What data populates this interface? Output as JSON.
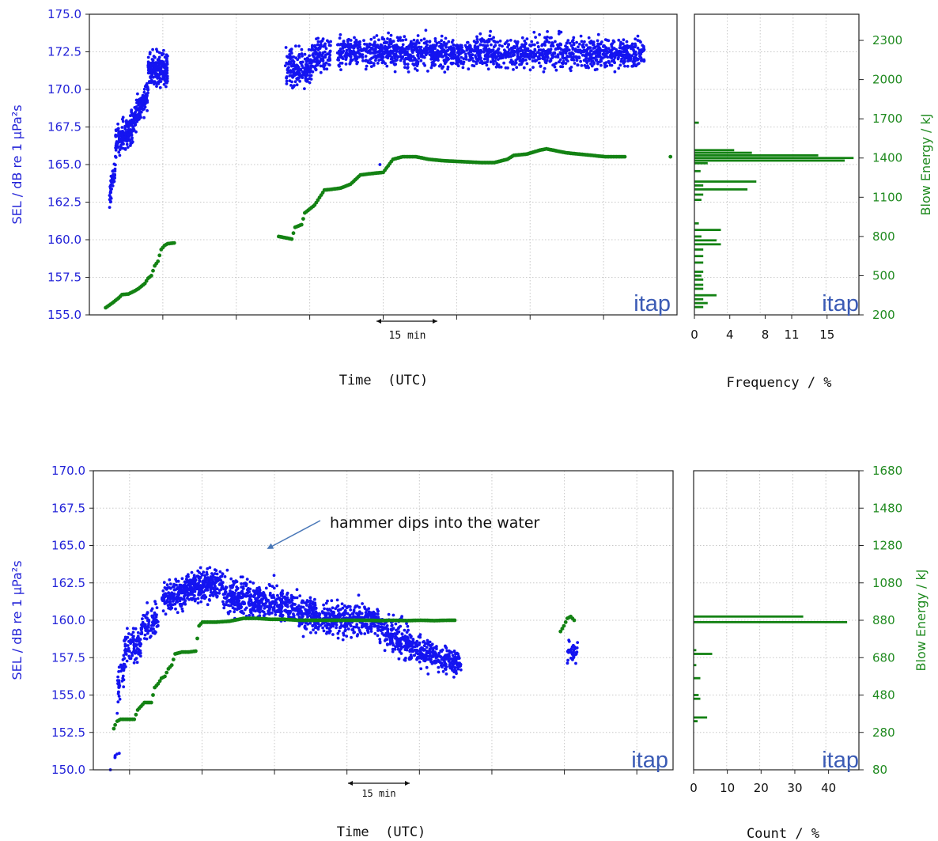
{
  "colors": {
    "sel": "#1414f0",
    "energy": "#138213",
    "axis_left": "#2323d8",
    "axis_right": "#1f8a1f",
    "grid": "#c8c8c8",
    "brand": "#3b5bb5",
    "arrow": "#4a78b8"
  },
  "chart_data": [
    {
      "type": "scatter",
      "panel": "top-timeseries",
      "ylabel": "SEL / dB re 1 µPa²s",
      "ylabel_right": "Blow Energy / kJ",
      "xlabel": "Time  (UTC)",
      "ylim": [
        155.0,
        175.0
      ],
      "yticks": [
        "155.0",
        "157.5",
        "160.0",
        "162.5",
        "165.0",
        "167.5",
        "170.0",
        "172.5",
        "175.0"
      ],
      "ylim_right": [
        200,
        2500
      ],
      "yticks_right": [
        "200",
        "500",
        "800",
        "1100",
        "1400",
        "1700",
        "2000",
        "2300"
      ],
      "x_unit": "minutes (relative)",
      "xlim": [
        0,
        90
      ],
      "grid": true,
      "scale_bar": "15 min",
      "brand": "itap",
      "series": [
        {
          "kind": "sel-clusters",
          "clusters": [
            {
              "x": [
                3,
                4
              ],
              "y": [
                162.5,
                165
              ],
              "spread": 0.8,
              "n": 50
            },
            {
              "x": [
                4,
                6.5
              ],
              "y": [
                166.5,
                167.5
              ],
              "spread": 1.0,
              "n": 140
            },
            {
              "x": [
                6.5,
                9
              ],
              "y": [
                167.5,
                170
              ],
              "spread": 1.0,
              "n": 140
            },
            {
              "x": [
                9,
                12
              ],
              "y": [
                171.3,
                171.3
              ],
              "spread": 1.1,
              "n": 220
            },
            {
              "x": [
                30,
                34
              ],
              "y": [
                171.3,
                171.5
              ],
              "spread": 1.2,
              "n": 180
            },
            {
              "x": [
                34,
                37
              ],
              "y": [
                172.2,
                172.4
              ],
              "spread": 1.0,
              "n": 110
            },
            {
              "x": [
                38,
                85
              ],
              "y": [
                172.5,
                172.4
              ],
              "spread": 1.0,
              "n": 1600
            }
          ],
          "outliers": [
            {
              "x": 44.5,
              "y": 165.0
            }
          ]
        },
        {
          "kind": "energy-steps",
          "points": [
            [
              2.5,
              255
            ],
            [
              3.5,
              290
            ],
            [
              4.5,
              330
            ],
            [
              5,
              355
            ],
            [
              6,
              360
            ],
            [
              7,
              385
            ],
            [
              7.5,
              400
            ],
            [
              8.5,
              440
            ],
            [
              9,
              480
            ],
            [
              9.5,
              500
            ],
            [
              10,
              575
            ],
            [
              10.5,
              610
            ],
            [
              11,
              700
            ],
            [
              11.5,
              730
            ],
            [
              12,
              745
            ],
            [
              13,
              750
            ],
            [
              29,
              800
            ],
            [
              30,
              790
            ],
            [
              31,
              780
            ],
            [
              31.5,
              870
            ],
            [
              32.5,
              890
            ],
            [
              33,
              980
            ],
            [
              34,
              1020
            ],
            [
              34.5,
              1040
            ],
            [
              36,
              1155
            ],
            [
              37,
              1160
            ],
            [
              38.5,
              1170
            ],
            [
              40,
              1200
            ],
            [
              41.5,
              1270
            ],
            [
              43,
              1280
            ],
            [
              44,
              1285
            ],
            [
              45,
              1290
            ],
            [
              46.5,
              1390
            ],
            [
              48,
              1410
            ],
            [
              50,
              1410
            ],
            [
              52,
              1390
            ],
            [
              54,
              1380
            ],
            [
              56,
              1375
            ],
            [
              58,
              1370
            ],
            [
              60,
              1365
            ],
            [
              62,
              1365
            ],
            [
              64,
              1390
            ],
            [
              65,
              1420
            ],
            [
              67,
              1430
            ],
            [
              69,
              1460
            ],
            [
              70,
              1470
            ],
            [
              71,
              1460
            ],
            [
              73,
              1440
            ],
            [
              75,
              1430
            ],
            [
              77,
              1420
            ],
            [
              79,
              1410
            ],
            [
              82,
              1410
            ],
            [
              89,
              1410
            ]
          ]
        }
      ]
    },
    {
      "type": "bar",
      "panel": "top-histogram",
      "orientation": "horizontal",
      "xlabel": "Frequency / %",
      "xticks": [
        "0",
        "4",
        "8",
        "11",
        "15"
      ],
      "xlim": [
        0,
        18.6
      ],
      "ylim": [
        200,
        2500
      ],
      "brand": "itap",
      "bars": [
        {
          "y": 1670,
          "v": 0.5
        },
        {
          "y": 1460,
          "v": 4.5
        },
        {
          "y": 1440,
          "v": 6.5
        },
        {
          "y": 1420,
          "v": 14.0
        },
        {
          "y": 1400,
          "v": 18.0
        },
        {
          "y": 1380,
          "v": 17.0
        },
        {
          "y": 1360,
          "v": 1.5
        },
        {
          "y": 1300,
          "v": 0.7
        },
        {
          "y": 1220,
          "v": 7.0
        },
        {
          "y": 1190,
          "v": 1.0
        },
        {
          "y": 1160,
          "v": 6.0
        },
        {
          "y": 1120,
          "v": 1.0
        },
        {
          "y": 1080,
          "v": 0.8
        },
        {
          "y": 900,
          "v": 0.5
        },
        {
          "y": 850,
          "v": 3.0
        },
        {
          "y": 800,
          "v": 0.8
        },
        {
          "y": 770,
          "v": 2.5
        },
        {
          "y": 740,
          "v": 3.0
        },
        {
          "y": 700,
          "v": 1.0
        },
        {
          "y": 650,
          "v": 1.0
        },
        {
          "y": 600,
          "v": 1.0
        },
        {
          "y": 530,
          "v": 1.0
        },
        {
          "y": 500,
          "v": 0.8
        },
        {
          "y": 470,
          "v": 1.0
        },
        {
          "y": 430,
          "v": 1.0
        },
        {
          "y": 400,
          "v": 1.0
        },
        {
          "y": 350,
          "v": 2.5
        },
        {
          "y": 320,
          "v": 1.0
        },
        {
          "y": 290,
          "v": 1.5
        },
        {
          "y": 260,
          "v": 1.0
        }
      ]
    },
    {
      "type": "scatter",
      "panel": "bottom-timeseries",
      "ylabel": "SEL / dB re 1 µPa²s",
      "ylabel_right": "Blow Energy / kJ",
      "xlabel": "Time  (UTC)",
      "ylim": [
        150.0,
        170.0
      ],
      "yticks": [
        "150.0",
        "152.5",
        "155.0",
        "157.5",
        "160.0",
        "162.5",
        "165.0",
        "167.5",
        "170.0"
      ],
      "ylim_right": [
        80,
        1680
      ],
      "yticks_right": [
        "80",
        "280",
        "480",
        "680",
        "880",
        "1080",
        "1280",
        "1480",
        "1680"
      ],
      "x_unit": "minutes (relative)",
      "xlim": [
        0,
        85
      ],
      "grid": true,
      "scale_bar": "15 min",
      "brand": "itap",
      "annotation": "hammer dips into the water",
      "series": [
        {
          "kind": "sel-clusters",
          "clusters": [
            {
              "x": [
                3,
                3.5
              ],
              "y": [
                150.5,
                151.5
              ],
              "spread": 0.5,
              "n": 4
            },
            {
              "x": [
                3.5,
                4.5
              ],
              "y": [
                155,
                157
              ],
              "spread": 1.2,
              "n": 40
            },
            {
              "x": [
                4.5,
                7
              ],
              "y": [
                158,
                158.5
              ],
              "spread": 1.1,
              "n": 90
            },
            {
              "x": [
                7,
                9.5
              ],
              "y": [
                159.5,
                160
              ],
              "spread": 1.0,
              "n": 90
            },
            {
              "x": [
                10,
                13.5
              ],
              "y": [
                161.5,
                161.8
              ],
              "spread": 1.0,
              "n": 150
            },
            {
              "x": [
                13.5,
                19
              ],
              "y": [
                162.2,
                162.5
              ],
              "spread": 1.0,
              "n": 250
            },
            {
              "x": [
                19,
                30
              ],
              "y": [
                161.8,
                160.8
              ],
              "spread": 1.1,
              "n": 450
            },
            {
              "x": [
                30,
                42
              ],
              "y": [
                160.3,
                159.9
              ],
              "spread": 1.1,
              "n": 450
            },
            {
              "x": [
                42,
                50
              ],
              "y": [
                159.5,
                157.5
              ],
              "spread": 1.1,
              "n": 300
            },
            {
              "x": [
                50,
                54
              ],
              "y": [
                157.5,
                157.2
              ],
              "spread": 0.9,
              "n": 140
            },
            {
              "x": [
                69.5,
                71
              ],
              "y": [
                158.0,
                157.8
              ],
              "spread": 0.9,
              "n": 35
            }
          ],
          "outliers": [
            {
              "x": 2.5,
              "y": 150.0
            },
            {
              "x": 3.8,
              "y": 151.1
            },
            {
              "x": 26.5,
              "y": 163.0
            }
          ]
        },
        {
          "kind": "energy-steps",
          "points": [
            [
              3,
              300
            ],
            [
              3.2,
              320
            ],
            [
              3.5,
              340
            ],
            [
              4,
              350
            ],
            [
              5,
              350
            ],
            [
              6,
              350
            ],
            [
              6.5,
              400
            ],
            [
              7,
              420
            ],
            [
              7.5,
              440
            ],
            [
              8.5,
              440
            ],
            [
              9,
              520
            ],
            [
              9.5,
              540
            ],
            [
              10,
              570
            ],
            [
              10.5,
              580
            ],
            [
              11,
              620
            ],
            [
              11.5,
              640
            ],
            [
              12,
              700
            ],
            [
              13,
              710
            ],
            [
              14,
              710
            ],
            [
              15,
              715
            ],
            [
              15.5,
              850
            ],
            [
              16,
              870
            ],
            [
              18,
              870
            ],
            [
              20,
              875
            ],
            [
              22,
              890
            ],
            [
              24,
              890
            ],
            [
              26,
              885
            ],
            [
              28,
              885
            ],
            [
              30,
              880
            ],
            [
              32,
              880
            ],
            [
              34,
              880
            ],
            [
              36,
              880
            ],
            [
              38,
              880
            ],
            [
              40,
              880
            ],
            [
              42,
              878
            ],
            [
              44,
              880
            ],
            [
              46,
              878
            ],
            [
              48,
              880
            ],
            [
              50,
              878
            ],
            [
              52,
              880
            ],
            [
              53,
              880
            ],
            [
              68.5,
              820
            ],
            [
              69,
              850
            ],
            [
              69.5,
              890
            ],
            [
              70,
              900
            ],
            [
              70.5,
              880
            ]
          ]
        }
      ]
    },
    {
      "type": "bar",
      "panel": "bottom-histogram",
      "orientation": "horizontal",
      "xlabel": "Count / %",
      "xticks": [
        "0",
        "10",
        "20",
        "30",
        "40"
      ],
      "xlim": [
        0,
        49
      ],
      "ylim": [
        80,
        1680
      ],
      "brand": "itap",
      "bars": [
        {
          "y": 900,
          "v": 32.5
        },
        {
          "y": 870,
          "v": 45.5
        },
        {
          "y": 720,
          "v": 0.8
        },
        {
          "y": 700,
          "v": 5.5
        },
        {
          "y": 640,
          "v": 0.8
        },
        {
          "y": 570,
          "v": 2.0
        },
        {
          "y": 480,
          "v": 1.5
        },
        {
          "y": 460,
          "v": 2.0
        },
        {
          "y": 360,
          "v": 4.0
        },
        {
          "y": 340,
          "v": 1.2
        }
      ]
    }
  ]
}
